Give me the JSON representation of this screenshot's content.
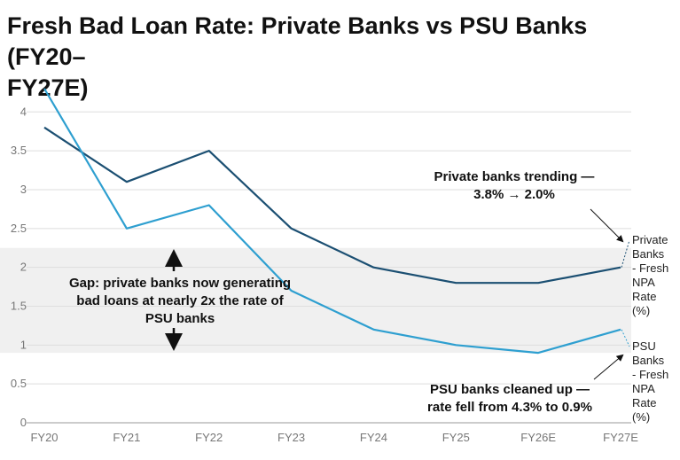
{
  "chart_data": {
    "type": "line",
    "title": "Fresh Bad Loan Rate: Private Banks vs PSU Banks (FY20–FY27E)",
    "title_lines": [
      "Fresh Bad Loan Rate: Private Banks vs PSU Banks (FY20–",
      "FY27E)"
    ],
    "categories": [
      "FY20",
      "FY21",
      "FY22",
      "FY23",
      "FY24",
      "FY25",
      "FY26E",
      "FY27E"
    ],
    "ylim": [
      0,
      4.3
    ],
    "yticks": [
      "0",
      "0.5",
      "1",
      "1.5",
      "2",
      "2.5",
      "3",
      "3.5",
      "4"
    ],
    "ytick_values": [
      0,
      0.5,
      1,
      1.5,
      2,
      2.5,
      3,
      3.5,
      4
    ],
    "grid": "horizontal",
    "highlight_band": [
      0.9,
      2.25
    ],
    "series": [
      {
        "name": "Private Banks - Fresh NPA Rate (%)",
        "label_lines": [
          "Private",
          "Banks",
          "- Fresh",
          "NPA",
          "Rate",
          "(%)"
        ],
        "color": "#1b4f72",
        "values": [
          3.8,
          3.1,
          3.5,
          2.5,
          2.0,
          1.8,
          1.8,
          2.0
        ]
      },
      {
        "name": "PSU Banks - Fresh NPA Rate (%)",
        "label_lines": [
          "PSU",
          "Banks",
          "- Fresh",
          "NPA",
          "Rate",
          "(%)"
        ],
        "color": "#2e9fd0",
        "values": [
          4.3,
          2.5,
          2.8,
          1.7,
          1.2,
          1.0,
          0.9,
          1.2
        ]
      }
    ],
    "annotations": {
      "gap_lines": [
        "Gap: private banks now generating",
        "bad loans at nearly 2x the rate of",
        "PSU banks"
      ],
      "private_lines": [
        "Private banks trending —",
        "3.8% → 2.0%"
      ],
      "psu_lines": [
        "PSU banks cleaned up —",
        "rate fell from 4.3% to 0.9%"
      ]
    }
  }
}
